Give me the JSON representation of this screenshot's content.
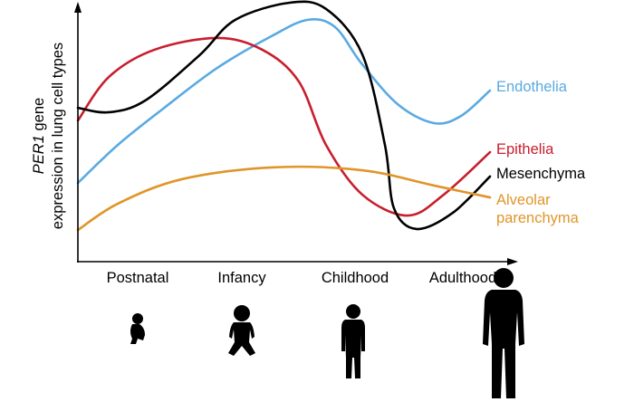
{
  "chart_data": {
    "type": "line",
    "title": "",
    "ylabel_italic": "PER1",
    "ylabel_rest": " gene",
    "ylabel_line2": "expression in lung cell types",
    "xlabel": "",
    "x_categories": [
      "Postnatal",
      "Infancy",
      "Childhood",
      "Adulthood"
    ],
    "xlim": [
      0,
      100
    ],
    "ylim": [
      0,
      100
    ],
    "grid": false,
    "legend": "direct labels at right end of lines",
    "series": [
      {
        "name": "Endothelia",
        "color": "#5aaae2",
        "x": [
          0,
          9.7,
          20.7,
          33.8,
          47,
          55.8,
          62.4,
          68.8,
          77.6,
          86.4,
          93,
          100
        ],
        "y": [
          30.4,
          45.1,
          59.1,
          74.8,
          87.1,
          93.4,
          90.6,
          76.6,
          60.8,
          53.5,
          56.3,
          66.1
        ]
      },
      {
        "name": "Epithelia",
        "color": "#c81e2e",
        "x": [
          0,
          7.5,
          18.5,
          33.8,
          44.8,
          53.6,
          60.2,
          69,
          80,
          88.8,
          100
        ],
        "y": [
          54.5,
          71.3,
          81.8,
          86.4,
          81.8,
          69.6,
          45.1,
          25.9,
          17.8,
          25.9,
          42.3
        ]
      },
      {
        "name": "Mesenchyma",
        "color": "#000000",
        "x": [
          0,
          7.5,
          16.3,
          29.5,
          38.2,
          51.4,
          60.2,
          69,
          74.5,
          76.7,
          82.2,
          91,
          100
        ],
        "y": [
          59.4,
          57.7,
          62.2,
          79.7,
          93.4,
          100,
          97.6,
          80.1,
          45.1,
          20.6,
          12.6,
          18.9,
          32.9
        ]
      },
      {
        "name": "Alveolar parenchyma",
        "name_line1": "Alveolar",
        "name_line2": "parenchyma",
        "color": "#e0952a",
        "x": [
          0,
          9.7,
          25.1,
          47,
          69,
          86.4,
          100
        ],
        "y": [
          12.2,
          22.4,
          31.8,
          36.4,
          35.3,
          29.4,
          24.8
        ]
      }
    ],
    "icons": [
      "baby-silhouette-icon",
      "infant-silhouette-icon",
      "child-silhouette-icon",
      "adult-silhouette-icon"
    ]
  }
}
